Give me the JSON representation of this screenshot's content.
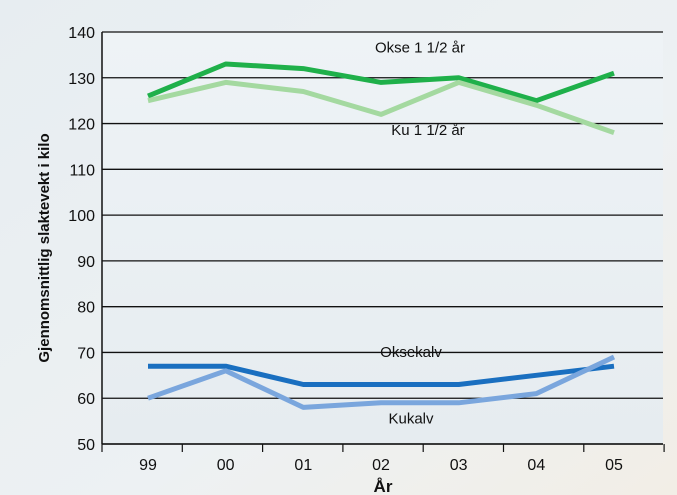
{
  "chart_data": {
    "type": "line",
    "xlabel": "År",
    "ylabel": "Gjennomsnittlig slaktevekt i kilo",
    "categories": [
      "99",
      "00",
      "01",
      "02",
      "03",
      "04",
      "05"
    ],
    "ylim": [
      50,
      140
    ],
    "yticks": [
      50,
      60,
      70,
      80,
      90,
      100,
      110,
      120,
      130,
      140
    ],
    "grid": "horizontal",
    "series": [
      {
        "name": "Okse 1 1/2 år",
        "color": "#1fb04a",
        "values": [
          126,
          133,
          132,
          129,
          130,
          125,
          131
        ]
      },
      {
        "name": "Ku 1 1/2 år",
        "color": "#a4d9a0",
        "values": [
          125,
          129,
          127,
          122,
          129,
          124,
          118
        ]
      },
      {
        "name": "Oksekalv",
        "color": "#1a6fc0",
        "values": [
          67,
          67,
          63,
          63,
          63,
          65,
          67
        ]
      },
      {
        "name": "Kukalv",
        "color": "#7aa6dd",
        "values": [
          60,
          66,
          58,
          59,
          59,
          61,
          69
        ]
      }
    ]
  }
}
